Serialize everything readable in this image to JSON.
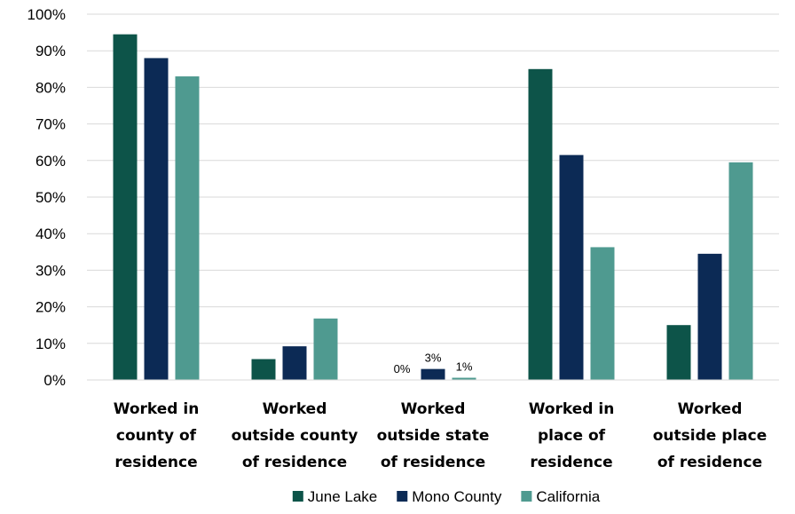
{
  "chart_data": {
    "type": "bar",
    "title": "",
    "xlabel": "",
    "ylabel": "",
    "ylim": [
      0,
      100
    ],
    "yticks": [
      "0%",
      "10%",
      "20%",
      "30%",
      "40%",
      "50%",
      "60%",
      "70%",
      "80%",
      "90%",
      "100%"
    ],
    "grid": true,
    "legend_position": "bottom",
    "categories": [
      [
        "Worked in",
        "county of",
        "residence"
      ],
      [
        "Worked",
        "outside county",
        "of residence"
      ],
      [
        "Worked",
        "outside state",
        "of residence"
      ],
      [
        "Worked in",
        "place of",
        "residence"
      ],
      [
        "Worked",
        "outside place",
        "of residence"
      ]
    ],
    "series": [
      {
        "name": "June Lake",
        "color": "#0d5449",
        "values": [
          94.5,
          5.7,
          0.0,
          85.0,
          15.0
        ]
      },
      {
        "name": "Mono County",
        "color": "#0c2a55",
        "values": [
          88.0,
          9.2,
          3.0,
          61.5,
          34.5
        ]
      },
      {
        "name": "California",
        "color": "#4f9a90",
        "values": [
          83.0,
          16.8,
          0.6,
          36.3,
          59.5
        ]
      }
    ],
    "data_labels": [
      {
        "category": 2,
        "series": 0,
        "text": "0%"
      },
      {
        "category": 2,
        "series": 1,
        "text": "3%"
      },
      {
        "category": 2,
        "series": 2,
        "text": "1%"
      }
    ]
  }
}
